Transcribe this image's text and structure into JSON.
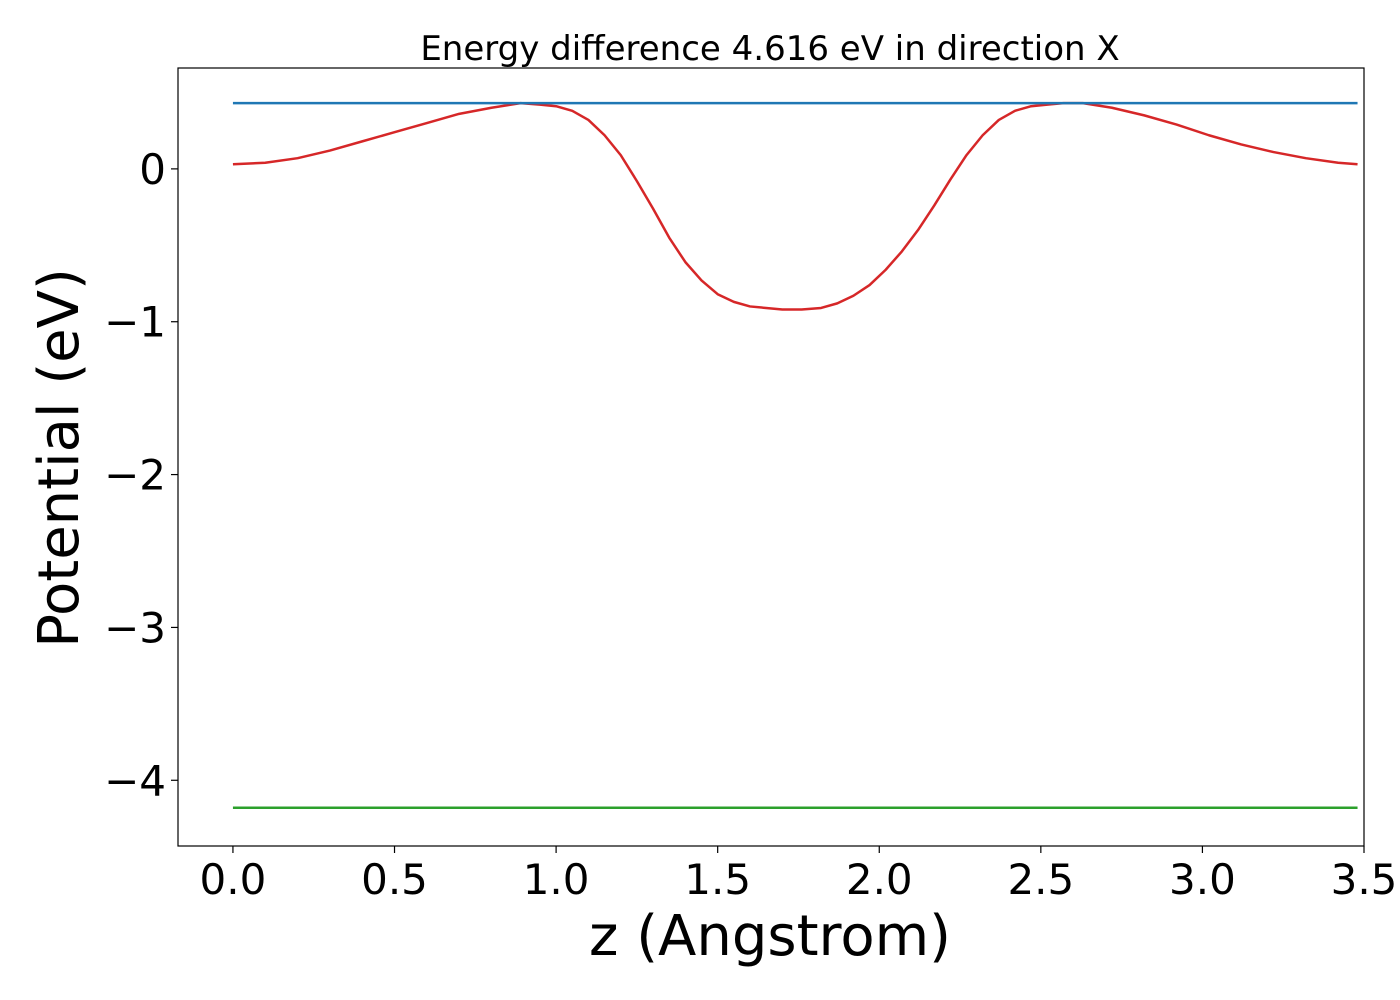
{
  "chart_data": {
    "type": "line",
    "title": "Energy difference 4.616 eV in direction X",
    "xlabel": "z (Angstrom)",
    "ylabel": "Potential (eV)",
    "xlim": [
      -0.17,
      3.5
    ],
    "ylim": [
      -4.43,
      0.66
    ],
    "xticks": [
      0.0,
      0.5,
      1.0,
      1.5,
      2.0,
      2.5,
      3.0,
      3.5
    ],
    "xtick_labels": [
      "0.0",
      "0.5",
      "1.0",
      "1.5",
      "2.0",
      "2.5",
      "3.0",
      "3.5"
    ],
    "yticks": [
      0,
      -1,
      -2,
      -3,
      -4
    ],
    "ytick_labels": [
      "0",
      "−1",
      "−2",
      "−3",
      "−4"
    ],
    "grid": false,
    "series": [
      {
        "color": "#d62728",
        "x": [
          0.0,
          0.1,
          0.2,
          0.3,
          0.4,
          0.5,
          0.6,
          0.7,
          0.8,
          0.89,
          0.95,
          1.0,
          1.05,
          1.1,
          1.15,
          1.2,
          1.25,
          1.3,
          1.35,
          1.4,
          1.45,
          1.5,
          1.55,
          1.6,
          1.65,
          1.7,
          1.76,
          1.82,
          1.87,
          1.92,
          1.97,
          2.02,
          2.07,
          2.12,
          2.17,
          2.22,
          2.27,
          2.32,
          2.37,
          2.42,
          2.47,
          2.52,
          2.57,
          2.63,
          2.72,
          2.82,
          2.92,
          3.02,
          3.12,
          3.22,
          3.32,
          3.42,
          3.48
        ],
        "y": [
          0.03,
          0.04,
          0.07,
          0.12,
          0.18,
          0.24,
          0.3,
          0.36,
          0.4,
          0.43,
          0.42,
          0.41,
          0.38,
          0.32,
          0.22,
          0.09,
          -0.08,
          -0.26,
          -0.45,
          -0.61,
          -0.73,
          -0.82,
          -0.87,
          -0.9,
          -0.91,
          -0.92,
          -0.92,
          -0.91,
          -0.88,
          -0.83,
          -0.76,
          -0.66,
          -0.54,
          -0.4,
          -0.24,
          -0.07,
          0.09,
          0.22,
          0.32,
          0.38,
          0.41,
          0.42,
          0.43,
          0.43,
          0.4,
          0.35,
          0.29,
          0.22,
          0.16,
          0.11,
          0.07,
          0.04,
          0.03
        ]
      },
      {
        "color": "#1f77b4",
        "x": [
          0.0,
          3.48
        ],
        "y": [
          0.43,
          0.43
        ]
      },
      {
        "color": "#2ca02c",
        "x": [
          0.0,
          3.48
        ],
        "y": [
          -4.18,
          -4.18
        ]
      }
    ]
  }
}
